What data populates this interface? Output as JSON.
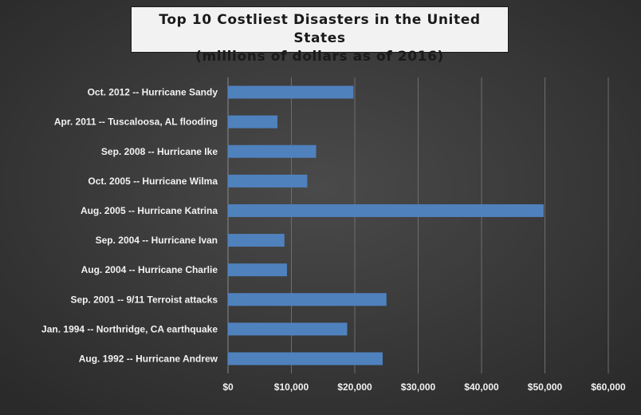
{
  "chart_data": {
    "type": "bar",
    "orientation": "horizontal",
    "title": "Top 10 Costliest Disasters in the United States",
    "subtitle": "(millions of dollars as of 2016)",
    "xlabel": "",
    "ylabel": "",
    "categories": [
      "Oct. 2012 -- Hurricane Sandy",
      "Apr. 2011 -- Tuscaloosa, AL flooding",
      "Sep. 2008 -- Hurricane Ike",
      "Oct. 2005 -- Hurricane Wilma",
      "Aug. 2005 -- Hurricane Katrina",
      "Sep. 2004 -- Hurricane Ivan",
      "Aug. 2004 -- Hurricane Charlie",
      "Sep. 2001 -- 9/11 Terroist attacks",
      "Jan. 1994 -- Northridge, CA earthquake",
      "Aug. 1992 -- Hurricane Andrew"
    ],
    "values": [
      19800,
      7800,
      13900,
      12500,
      49800,
      8900,
      9300,
      25000,
      18800,
      24400
    ],
    "xlim": [
      0,
      60000
    ],
    "xticks": [
      0,
      10000,
      20000,
      30000,
      40000,
      50000,
      60000
    ],
    "xtick_labels": [
      "$0",
      "$10,000",
      "$20,000",
      "$30,000",
      "$40,000",
      "$50,000",
      "$60,000"
    ],
    "grid": true,
    "legend": "none",
    "colors": {
      "bar": "#4f81bd",
      "plot_background": "#3f3f3f",
      "gridline": "#6e6e6e",
      "text": "#f2f2f2",
      "title_box": "#f2f2f2"
    }
  }
}
